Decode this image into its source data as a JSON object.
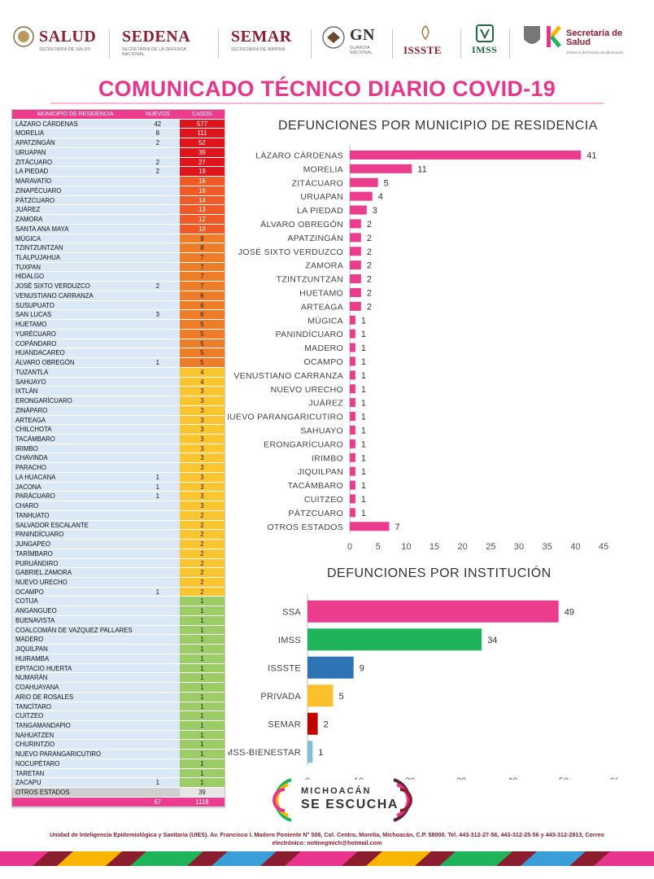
{
  "header": {
    "logos": [
      {
        "name": "SALUD",
        "sub": "SECRETARÍA DE SALUD"
      },
      {
        "name": "SEDENA",
        "sub": "SECRETARÍA DE LA DEFENSA NACIONAL"
      },
      {
        "name": "SEMAR",
        "sub": "SECRETARÍA DE MARINA"
      },
      {
        "name": "GN",
        "sub": "GUARDIA NACIONAL"
      },
      {
        "name": "ISSSTE",
        "sub": ""
      },
      {
        "name": "IMSS",
        "sub": ""
      },
      {
        "name": "Secretaría de Salud",
        "sub": "Gobierno del Estado de Michoacán"
      }
    ],
    "title": "COMUNICADO TÉCNICO DIARIO COVID-19"
  },
  "colors": {
    "pink": "#ec3c8e",
    "red": "#e0141c",
    "orange": "#ee7d28",
    "yellow": "#fbc530",
    "green": "#9ccc65",
    "lightblue": "#dbe9f6"
  },
  "table": {
    "headers": [
      "MUNICIPIO DE RESIDENCIA",
      "NUEVOS",
      "CASOS"
    ],
    "rows": [
      [
        "LÁZARO CÁRDENAS",
        "42",
        "577"
      ],
      [
        "MORELIA",
        "8",
        "111"
      ],
      [
        "APATZINGÁN",
        "2",
        "52"
      ],
      [
        "URUAPAN",
        "",
        "39"
      ],
      [
        "ZITÁCUARO",
        "2",
        "27"
      ],
      [
        "LA PIEDAD",
        "2",
        "19"
      ],
      [
        "MARAVATÍO",
        "",
        "16"
      ],
      [
        "ZINAPÉCUARO",
        "",
        "16"
      ],
      [
        "PÁTZCUARO",
        "",
        "14"
      ],
      [
        "JUÁREZ",
        "",
        "13"
      ],
      [
        "ZAMORA",
        "",
        "12"
      ],
      [
        "SANTA ANA MAYA",
        "",
        "10"
      ],
      [
        "MÚGICA",
        "",
        "9"
      ],
      [
        "TZINTZUNTZAN",
        "",
        "8"
      ],
      [
        "TLALPUJAHUA",
        "",
        "7"
      ],
      [
        "TUXPAN",
        "",
        "7"
      ],
      [
        "HIDALGO",
        "",
        "7"
      ],
      [
        "JOSÉ SIXTO VERDUZCO",
        "2",
        "7"
      ],
      [
        "VENUSTIANO CARRANZA",
        "",
        "6"
      ],
      [
        "SUSUPUATO",
        "",
        "6"
      ],
      [
        "SAN LUCAS",
        "3",
        "6"
      ],
      [
        "HUETAMO",
        "",
        "5"
      ],
      [
        "YURÉCUARO",
        "",
        "5"
      ],
      [
        "COPÁNDARO",
        "",
        "5"
      ],
      [
        "HUANDACAREO",
        "",
        "5"
      ],
      [
        "ÁLVARO OBREGÓN",
        "1",
        "5"
      ],
      [
        "TUZANTLA",
        "",
        "4"
      ],
      [
        "SAHUAYO",
        "",
        "4"
      ],
      [
        "IXTLÁN",
        "",
        "3"
      ],
      [
        "ERONGARÍCUARO",
        "",
        "3"
      ],
      [
        "ZINÁPARO",
        "",
        "3"
      ],
      [
        "ARTEAGA",
        "",
        "3"
      ],
      [
        "CHILCHOTA",
        "",
        "3"
      ],
      [
        "TACÁMBARO",
        "",
        "3"
      ],
      [
        "IRIMBO",
        "",
        "3"
      ],
      [
        "CHAVINDA",
        "",
        "3"
      ],
      [
        "PARACHO",
        "",
        "3"
      ],
      [
        "LA HUACANA",
        "1",
        "3"
      ],
      [
        "JACONA",
        "1",
        "3"
      ],
      [
        "PARÁCUARO",
        "1",
        "3"
      ],
      [
        "CHARO",
        "",
        "3"
      ],
      [
        "TANHUATO",
        "",
        "2"
      ],
      [
        "SALVADOR ESCALANTE",
        "",
        "2"
      ],
      [
        "PANINDÍCUARO",
        "",
        "2"
      ],
      [
        "JUNGAPEO",
        "",
        "2"
      ],
      [
        "TARÍMBARO",
        "",
        "2"
      ],
      [
        "PURUÁNDIRO",
        "",
        "2"
      ],
      [
        "GABRIEL ZAMORA",
        "",
        "2"
      ],
      [
        "NUEVO URECHO",
        "",
        "2"
      ],
      [
        "OCAMPO",
        "1",
        "2"
      ],
      [
        "COTIJA",
        "",
        "1"
      ],
      [
        "ANGANGUEO",
        "",
        "1"
      ],
      [
        "BUENAVISTA",
        "",
        "1"
      ],
      [
        "COALCOMÁN DE VAZQUEZ PALLARES",
        "",
        "1"
      ],
      [
        "MADERO",
        "",
        "1"
      ],
      [
        "JIQUILPAN",
        "",
        "1"
      ],
      [
        "HUIRAMBA",
        "",
        "1"
      ],
      [
        "EPITACIO HUERTA",
        "",
        "1"
      ],
      [
        "NUMARÁN",
        "",
        "1"
      ],
      [
        "COAHUAYANA",
        "",
        "1"
      ],
      [
        "ARIO DE ROSALES",
        "",
        "1"
      ],
      [
        "TANCÍTARO",
        "",
        "1"
      ],
      [
        "CUITZEO",
        "",
        "1"
      ],
      [
        "TANGAMANDAPIO",
        "",
        "1"
      ],
      [
        "NAHUATZEN",
        "",
        "1"
      ],
      [
        "CHURINTZIO",
        "",
        "1"
      ],
      [
        "NUEVO PARANGARICUTIRO",
        "",
        "1"
      ],
      [
        "NOCUPÉTARO",
        "",
        "1"
      ],
      [
        "TARETAN",
        "",
        "1"
      ],
      [
        "ZACAPU",
        "1",
        "1"
      ],
      [
        "OTROS ESTADOS",
        "",
        "39"
      ]
    ],
    "totals": [
      "",
      "67",
      "1118"
    ]
  },
  "chart_data": [
    {
      "type": "bar",
      "orientation": "horizontal",
      "title": "DEFUNCIONES POR MUNICIPIO DE RESIDENCIA",
      "categories": [
        "LÁZARO CÁRDENAS",
        "MORELIA",
        "ZITÁCUARO",
        "URUAPAN",
        "LA PIEDAD",
        "ÁLVARO OBREGÓN",
        "APATZINGÁN",
        "JOSÉ SIXTO VERDUZCO",
        "ZAMORA",
        "TZINTZUNTZAN",
        "HUETAMO",
        "ARTEAGA",
        "MÚGICA",
        "PANINDÍCUARO",
        "MADERO",
        "OCAMPO",
        "VENUSTIANO CARRANZA",
        "NUEVO URECHO",
        "JUÁREZ",
        "NUEVO PARANGARICUTIRO",
        "SAHUAYO",
        "ERONGARÍCUARO",
        "IRIMBO",
        "JIQUILPAN",
        "TACÁMBARO",
        "CUITZEO",
        "PÁTZCUARO",
        "OTROS ESTADOS"
      ],
      "values": [
        41,
        11,
        5,
        4,
        3,
        2,
        2,
        2,
        2,
        2,
        2,
        2,
        1,
        1,
        1,
        1,
        1,
        1,
        1,
        1,
        1,
        1,
        1,
        1,
        1,
        1,
        1,
        7
      ],
      "xlim": [
        0,
        45
      ],
      "xticks": [
        0,
        5,
        10,
        15,
        20,
        25,
        30,
        35,
        40,
        45
      ],
      "colors": [
        "#ec3c8e"
      ]
    },
    {
      "type": "bar",
      "orientation": "horizontal",
      "title": "DEFUNCIONES POR INSTITUCIÓN",
      "categories": [
        "SSA",
        "IMSS",
        "ISSSTE",
        "PRIVADA",
        "SEMAR",
        "IMSS-BIENESTAR"
      ],
      "values": [
        49,
        34,
        9,
        5,
        2,
        1
      ],
      "xlim": [
        0,
        60
      ],
      "xticks": [
        0,
        10,
        20,
        30,
        40,
        50,
        60
      ],
      "colors": [
        "#ec3c8e",
        "#1fb45a",
        "#2e74b5",
        "#fbc02d",
        "#c00000",
        "#7fbfd0"
      ]
    }
  ],
  "branding": {
    "line1": "MICHOACÁN",
    "line2": "SE ESCUCHA"
  },
  "footer": {
    "line1": "Unidad de Inteligencia Epidemiológica y Sanitaria (UIES). Av. Francisco I. Madero Poniente N° 508, Col. Centro, Morelia, Michoacán, C.P. 58000. Tel. 443-312-27-56, 443-312-25-56 y 443-312-2813, Correo",
    "line2": "electrónico: notinegmich@hotmail.com"
  }
}
